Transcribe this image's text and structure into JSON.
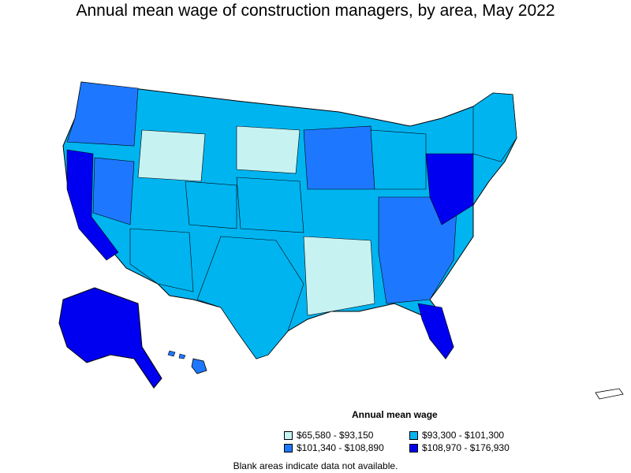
{
  "title": "Annual mean wage of construction managers, by area, May 2022",
  "colors": {
    "c1": "#c6f2f2",
    "c2": "#00b4f0",
    "c3": "#1e78ff",
    "c4": "#0000f0",
    "border": "#000000"
  },
  "legend": {
    "title": "Annual mean wage",
    "items": [
      {
        "label": "$65,580 - $93,150",
        "color": "#c6f2f2"
      },
      {
        "label": "$93,300 - $101,300",
        "color": "#00b4f0"
      },
      {
        "label": "$101,340 - $108,890",
        "color": "#1e78ff"
      },
      {
        "label": "$108,970 - $176,930",
        "color": "#0000f0"
      }
    ]
  },
  "note": "Blank areas indicate data not available."
}
